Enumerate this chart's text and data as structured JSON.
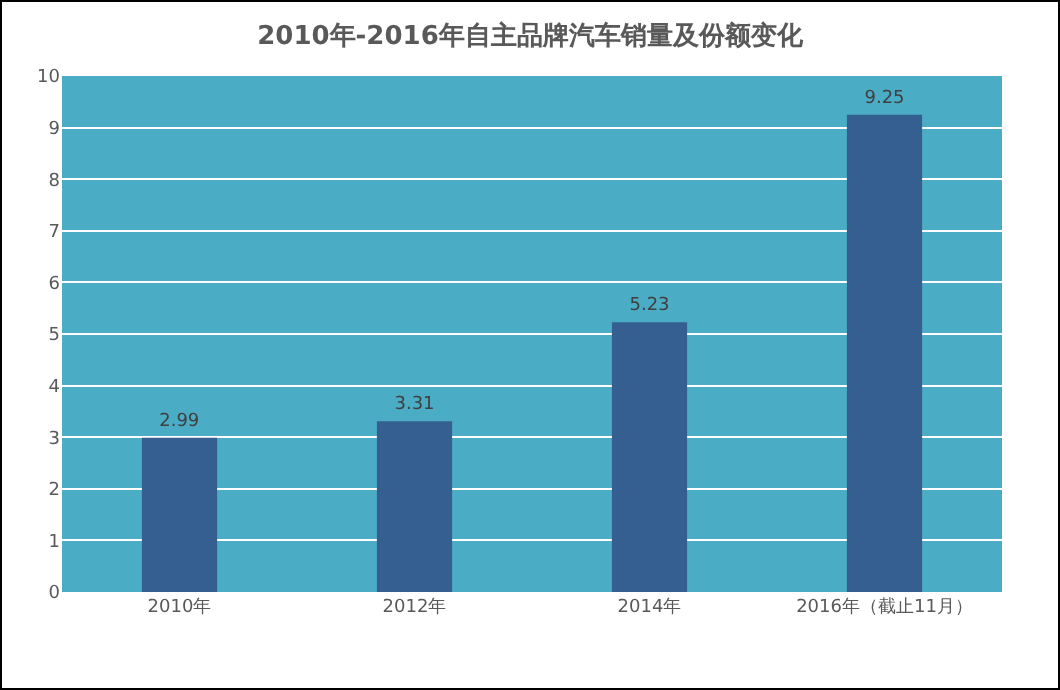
{
  "chart_data": {
    "type": "bar",
    "title": "2010年-2016年自主品牌汽车销量及份额变化",
    "categories": [
      "2010年",
      "2012年",
      "2014年",
      "2016年（截止11月）"
    ],
    "series": [
      {
        "color": "#365f91",
        "values": [
          2.99,
          3.31,
          5.23,
          9.25
        ]
      }
    ],
    "ylim": [
      0,
      10
    ],
    "yticks": [
      0,
      1,
      2,
      3,
      4,
      5,
      6,
      7,
      8,
      9,
      10
    ],
    "grid": "y",
    "data_labels": true
  }
}
